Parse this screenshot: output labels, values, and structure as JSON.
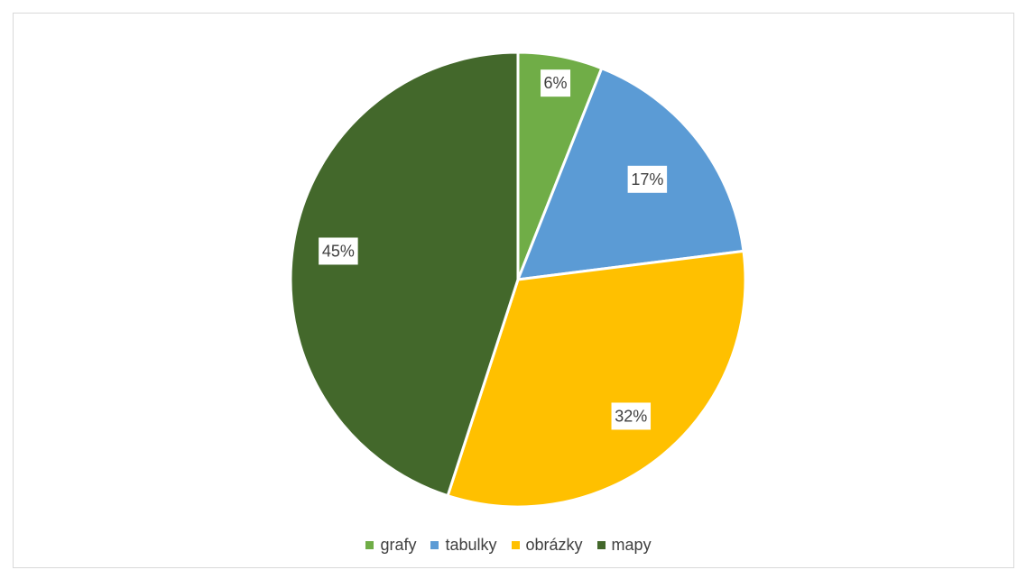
{
  "chart_data": {
    "type": "pie",
    "categories": [
      "grafy",
      "tabulky",
      "obrázky",
      "mapy"
    ],
    "values": [
      6,
      17,
      32,
      45
    ],
    "data_labels": [
      "6%",
      "17%",
      "32%",
      "45%"
    ],
    "colors": [
      "#70ad47",
      "#5b9bd5",
      "#ffc000",
      "#43682b"
    ],
    "title": "",
    "legend_placement": "bottom",
    "start": "12 o'clock",
    "direction": "clockwise"
  }
}
